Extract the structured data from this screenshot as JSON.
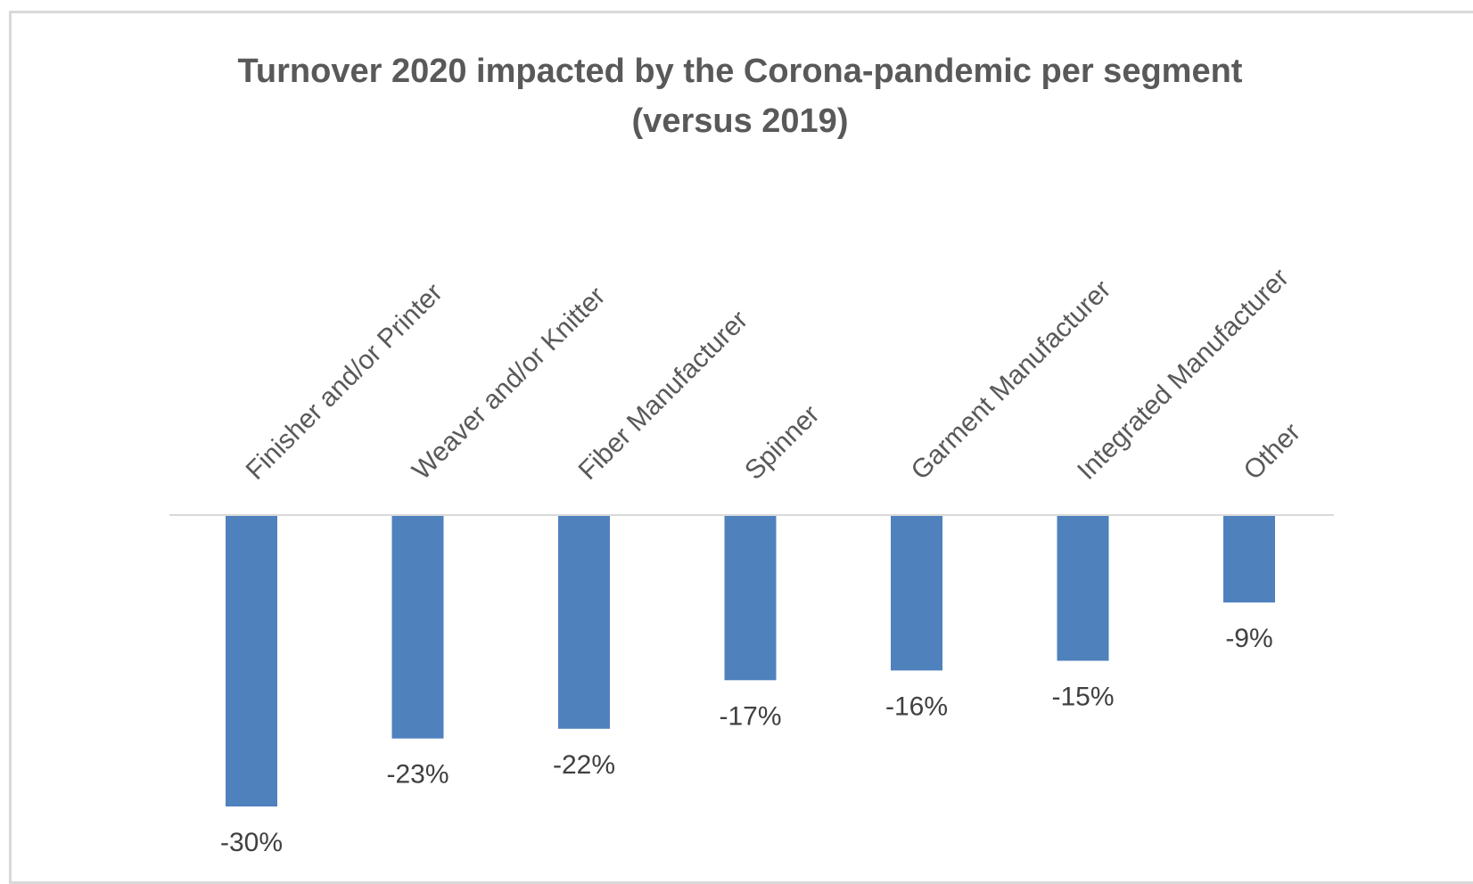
{
  "chart_data": {
    "type": "bar",
    "title_lines": [
      "Turnover 2020 impacted by the Corona-pandemic per segment",
      "(versus 2019)"
    ],
    "categories": [
      "Finisher and/or Printer",
      "Weaver and/or Knitter",
      "Fiber Manufacturer",
      "Spinner",
      "Garment Manufacturer",
      "Integrated Manufacturer",
      "Other"
    ],
    "values": [
      -30,
      -23,
      -22,
      -17,
      -16,
      -15,
      -9
    ],
    "data_labels": [
      "-30%",
      "-23%",
      "-22%",
      "-17%",
      "-16%",
      "-15%",
      "-9%"
    ],
    "unit": "%",
    "ylim": [
      -30,
      0
    ],
    "grid": false,
    "legend": "none",
    "bar_color": "#4f81bd",
    "axis_color": "#d9d9d9"
  }
}
